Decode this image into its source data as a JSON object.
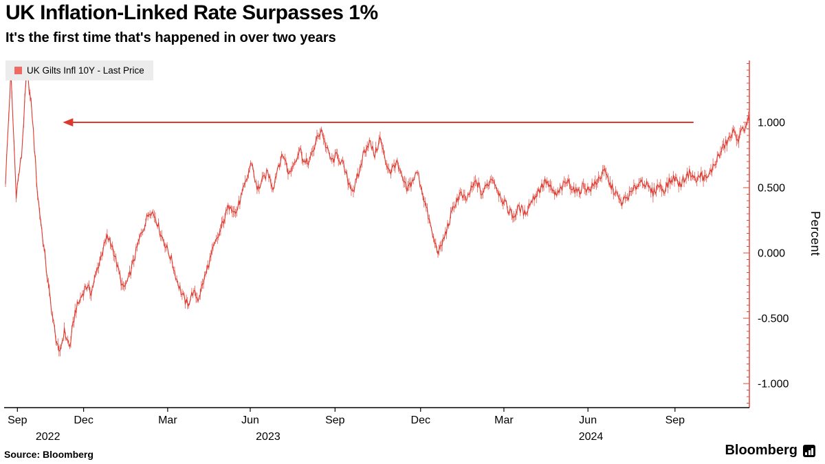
{
  "header": {
    "title": "UK Inflation-Linked Rate Surpasses 1%",
    "subtitle": "It's the first time that's happened in over two years"
  },
  "legend": {
    "swatch_color": "#ef6a63",
    "label": "UK Gilts Infl 10Y - Last Price"
  },
  "footer": {
    "source": "Source: Bloomberg",
    "brand": "Bloomberg"
  },
  "chart_data": {
    "type": "line",
    "title": "UK Inflation-Linked Rate Surpasses 1%",
    "series_name": "UK Gilts Infl 10Y - Last Price",
    "ylabel": "Percent",
    "ylim": [
      -1.18,
      1.47
    ],
    "yticks": [
      1.0,
      0.5,
      0.0,
      -0.5,
      -1.0
    ],
    "ytick_labels": [
      "1.000",
      "0.500",
      "0.000",
      "-0.500",
      "-1.000"
    ],
    "line_color": "#dd382e",
    "axis_color": "#e8453c",
    "x_axis": {
      "month_ticks": [
        {
          "label": "Sep",
          "f": 0.016
        },
        {
          "label": "Dec",
          "f": 0.105
        },
        {
          "label": "Mar",
          "f": 0.218
        },
        {
          "label": "Jun",
          "f": 0.329
        },
        {
          "label": "Sep",
          "f": 0.443
        },
        {
          "label": "Dec",
          "f": 0.558
        },
        {
          "label": "Mar",
          "f": 0.67
        },
        {
          "label": "Jun",
          "f": 0.783
        },
        {
          "label": "Sep",
          "f": 0.9
        }
      ],
      "year_labels": [
        {
          "label": "2022",
          "f": 0.057
        },
        {
          "label": "2023",
          "f": 0.353
        },
        {
          "label": "2024",
          "f": 0.787
        }
      ],
      "range": "Sep 2022 - Nov 2024"
    },
    "annotation_arrow": {
      "y": 1.0,
      "from_f": 0.925,
      "to_f": 0.077
    },
    "values": [
      0.55,
      1.38,
      0.45,
      0.75,
      1.42,
      1.05,
      0.45,
      0.1,
      -0.25,
      -0.55,
      -0.78,
      -0.6,
      -0.72,
      -0.45,
      -0.35,
      -0.25,
      -0.3,
      -0.15,
      0.0,
      0.12,
      0.05,
      -0.12,
      -0.28,
      -0.2,
      -0.05,
      0.1,
      0.22,
      0.33,
      0.28,
      0.15,
      0.05,
      -0.05,
      -0.2,
      -0.32,
      -0.4,
      -0.3,
      -0.35,
      -0.22,
      -0.08,
      0.05,
      0.15,
      0.28,
      0.38,
      0.3,
      0.42,
      0.55,
      0.7,
      0.48,
      0.55,
      0.62,
      0.5,
      0.68,
      0.75,
      0.6,
      0.7,
      0.8,
      0.68,
      0.72,
      0.85,
      0.95,
      0.8,
      0.7,
      0.75,
      0.68,
      0.55,
      0.48,
      0.6,
      0.78,
      0.85,
      0.75,
      0.88,
      0.7,
      0.62,
      0.7,
      0.58,
      0.48,
      0.55,
      0.62,
      0.45,
      0.28,
      0.1,
      0.0,
      0.12,
      0.25,
      0.38,
      0.45,
      0.4,
      0.48,
      0.55,
      0.45,
      0.52,
      0.58,
      0.48,
      0.4,
      0.33,
      0.28,
      0.35,
      0.3,
      0.38,
      0.44,
      0.5,
      0.55,
      0.48,
      0.44,
      0.5,
      0.55,
      0.5,
      0.46,
      0.52,
      0.48,
      0.52,
      0.58,
      0.62,
      0.52,
      0.46,
      0.38,
      0.42,
      0.46,
      0.52,
      0.56,
      0.5,
      0.46,
      0.52,
      0.48,
      0.54,
      0.58,
      0.52,
      0.58,
      0.62,
      0.55,
      0.6,
      0.56,
      0.64,
      0.72,
      0.8,
      0.86,
      0.92,
      0.88,
      0.96,
      1.03
    ]
  }
}
